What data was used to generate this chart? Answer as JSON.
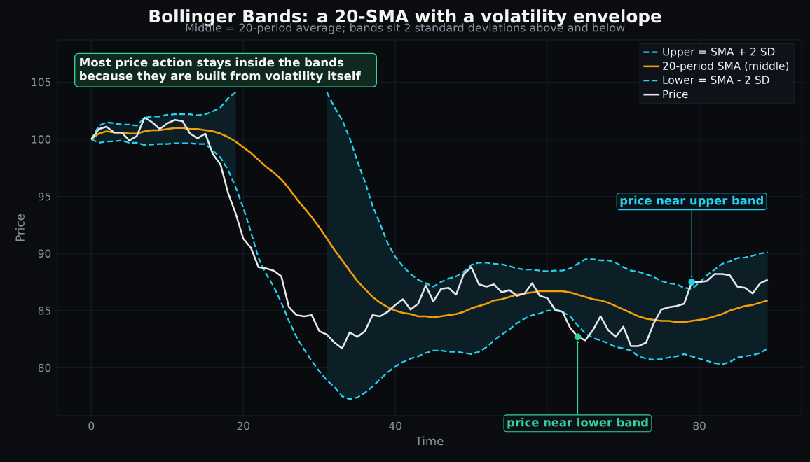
{
  "chart_data": {
    "type": "line",
    "title": "Bollinger Bands: a 20-SMA with a volatility envelope",
    "subtitle": "Middle = 20-period average; bands sit 2 standard deviations above and below",
    "xlabel": "Time",
    "ylabel": "Price",
    "x": [
      0,
      1,
      2,
      3,
      4,
      5,
      6,
      7,
      8,
      9,
      10,
      11,
      12,
      13,
      14,
      15,
      16,
      17,
      18,
      19,
      20,
      21,
      22,
      23,
      24,
      25,
      26,
      27,
      28,
      29,
      30,
      31,
      32,
      33,
      34,
      35,
      36,
      37,
      38,
      39,
      40,
      41,
      42,
      43,
      44,
      45,
      46,
      47,
      48,
      49,
      50,
      51,
      52,
      53,
      54,
      55,
      56,
      57,
      58,
      59,
      60,
      61,
      62,
      63,
      64,
      65,
      66,
      67,
      68,
      69,
      70,
      71,
      72,
      73,
      74,
      75,
      76,
      77,
      78,
      79,
      80,
      81,
      82,
      83,
      84,
      85,
      86,
      87,
      88,
      89
    ],
    "series": [
      {
        "name": "Upper = SMA + 2 SD",
        "color": "#22d3ee",
        "line_style": "dashed",
        "values": [
          100,
          101.2,
          101.5,
          101.4,
          101.3,
          101.3,
          101.2,
          101.9,
          102.0,
          102.0,
          102.15,
          102.2,
          102.2,
          102.2,
          102.1,
          102.2,
          102.45,
          102.8,
          103.6,
          104.1,
          null,
          null,
          null,
          null,
          null,
          null,
          null,
          null,
          null,
          null,
          null,
          104.1,
          102.8,
          101.7,
          100.1,
          98.1,
          96.3,
          94.2,
          92.6,
          90.9,
          89.7,
          88.9,
          88.2,
          87.7,
          87.4,
          87.1,
          87.5,
          87.8,
          88.0,
          88.4,
          89.0,
          89.2,
          89.2,
          89.1,
          89.05,
          88.9,
          88.7,
          88.6,
          88.6,
          88.5,
          88.45,
          88.5,
          88.5,
          88.7,
          89.1,
          89.5,
          89.5,
          89.4,
          89.4,
          89.2,
          88.8,
          88.5,
          88.4,
          88.2,
          87.95,
          87.6,
          87.4,
          87.3,
          87.0,
          86.9,
          87.45,
          88.1,
          88.6,
          89.1,
          89.3,
          89.6,
          89.65,
          89.8,
          90.0,
          90.1
        ]
      },
      {
        "name": "20-period SMA (middle)",
        "color": "#f59e0b",
        "line_style": "solid",
        "values": [
          100,
          100.5,
          100.7,
          100.6,
          100.6,
          100.5,
          100.5,
          100.7,
          100.8,
          100.8,
          100.9,
          101.0,
          101.0,
          100.9,
          100.9,
          100.8,
          100.7,
          100.5,
          100.2,
          99.8,
          99.3,
          98.8,
          98.2,
          97.6,
          97.1,
          96.5,
          95.7,
          94.8,
          94.0,
          93.2,
          92.3,
          91.3,
          90.3,
          89.4,
          88.5,
          87.6,
          86.9,
          86.2,
          85.7,
          85.3,
          85.0,
          84.8,
          84.7,
          84.5,
          84.5,
          84.4,
          84.5,
          84.6,
          84.7,
          84.9,
          85.2,
          85.4,
          85.6,
          85.9,
          86.0,
          86.2,
          86.4,
          86.5,
          86.6,
          86.7,
          86.7,
          86.7,
          86.7,
          86.6,
          86.4,
          86.2,
          86.0,
          85.9,
          85.7,
          85.4,
          85.1,
          84.8,
          84.5,
          84.3,
          84.2,
          84.1,
          84.1,
          84.0,
          84.0,
          84.1,
          84.2,
          84.3,
          84.5,
          84.7,
          85.0,
          85.2,
          85.4,
          85.5,
          85.7,
          85.9
        ],
        "upper": [
          100,
          101.2,
          101.5,
          101.4,
          101.3,
          101.3,
          101.2,
          101.9,
          102.0,
          102.0,
          102.15,
          102.2,
          102.2,
          102.2,
          102.1,
          102.2,
          102.45,
          102.8,
          103.6,
          104.1,
          null,
          null,
          null,
          null,
          null,
          null,
          null,
          null,
          null,
          null,
          null,
          104.1,
          102.8,
          101.7,
          100.1,
          98.1,
          96.3,
          94.2,
          92.6,
          90.9,
          89.7,
          88.9,
          88.2,
          87.7,
          87.4,
          87.1,
          87.5,
          87.8,
          88.0,
          88.4,
          89.0,
          89.2,
          89.2,
          89.1,
          89.05,
          88.9,
          88.7,
          88.6,
          88.6,
          88.5,
          88.45,
          88.5,
          88.5,
          88.7,
          89.1,
          89.5,
          89.5,
          89.4,
          89.4,
          89.2,
          88.8,
          88.5,
          88.4,
          88.2,
          87.95,
          87.6,
          87.4,
          87.3,
          87.0,
          86.9,
          87.45,
          88.1,
          88.6,
          89.1,
          89.3,
          89.6,
          89.65,
          89.8,
          90.0,
          90.1
        ],
        "lower": [
          100,
          99.7,
          99.8,
          99.82,
          99.9,
          99.7,
          99.7,
          99.5,
          99.55,
          99.6,
          99.6,
          99.65,
          99.65,
          99.65,
          99.6,
          99.6,
          99.0,
          98.4,
          97.3,
          95.8,
          null,
          null,
          null,
          null,
          null,
          null,
          null,
          null,
          null,
          null,
          null,
          78.9,
          78.3,
          77.5,
          77.25,
          77.4,
          77.8,
          78.35,
          79.0,
          79.6,
          80.1,
          80.5,
          80.8,
          81.0,
          81.3,
          81.5,
          81.5,
          81.4,
          81.4,
          81.3,
          81.2,
          81.4,
          81.8,
          82.4,
          82.9,
          83.35,
          83.9,
          84.3,
          84.6,
          84.75,
          85.0,
          85.0,
          84.9,
          84.5,
          83.7,
          83.0,
          82.6,
          82.4,
          82.15,
          81.8,
          81.7,
          81.5,
          81.0,
          80.8,
          80.7,
          80.75,
          80.9,
          81.0,
          81.2,
          81.0,
          80.8,
          80.6,
          80.4,
          80.3,
          80.5,
          80.9,
          81.0,
          81.1,
          81.3,
          81.7
        ]
      },
      {
        "name": "Lower = SMA - 2 SD",
        "color": "#22d3ee",
        "line_style": "dashed",
        "values": [
          100,
          99.7,
          99.8,
          99.82,
          99.9,
          99.7,
          99.7,
          99.5,
          99.55,
          99.6,
          99.6,
          99.65,
          99.65,
          99.65,
          99.6,
          99.6,
          99.0,
          98.4,
          97.3,
          95.8,
          94.0,
          91.9,
          89.6,
          88.2,
          87.1,
          85.7,
          84.1,
          82.7,
          81.6,
          80.6,
          79.7,
          78.9,
          78.3,
          77.5,
          77.25,
          77.4,
          77.8,
          78.35,
          79.0,
          79.6,
          80.1,
          80.5,
          80.8,
          81.0,
          81.3,
          81.5,
          81.5,
          81.4,
          81.4,
          81.3,
          81.2,
          81.4,
          81.8,
          82.4,
          82.9,
          83.35,
          83.9,
          84.3,
          84.6,
          84.75,
          85.0,
          85.0,
          84.9,
          84.5,
          83.7,
          83.0,
          82.6,
          82.4,
          82.15,
          81.8,
          81.7,
          81.5,
          81.0,
          80.8,
          80.7,
          80.75,
          80.9,
          81.0,
          81.2,
          81.0,
          80.8,
          80.6,
          80.4,
          80.3,
          80.5,
          80.9,
          81.0,
          81.1,
          81.3,
          81.7
        ]
      },
      {
        "name": "Price",
        "color": "#e5e7eb",
        "line_style": "solid",
        "values": [
          100,
          100.9,
          101.1,
          100.6,
          100.6,
          99.9,
          100.3,
          101.9,
          101.5,
          100.9,
          101.4,
          101.7,
          101.6,
          100.5,
          100.1,
          100.5,
          98.7,
          97.8,
          95.3,
          93.5,
          91.3,
          90.5,
          88.8,
          88.7,
          88.5,
          88.0,
          85.3,
          84.6,
          84.5,
          84.6,
          83.2,
          82.9,
          82.2,
          81.7,
          83.1,
          82.7,
          83.2,
          84.6,
          84.5,
          84.9,
          85.5,
          86.0,
          85.1,
          85.6,
          87.2,
          85.8,
          86.9,
          87.0,
          86.4,
          88.2,
          88.8,
          87.3,
          87.1,
          87.3,
          86.6,
          86.8,
          86.3,
          86.5,
          87.4,
          86.3,
          86.1,
          85.1,
          84.9,
          83.5,
          82.7,
          82.4,
          83.3,
          84.5,
          83.3,
          82.7,
          83.6,
          81.9,
          81.9,
          82.2,
          83.9,
          85.1,
          85.3,
          85.4,
          85.6,
          87.5,
          87.5,
          87.6,
          88.2,
          88.2,
          88.1,
          87.1,
          87.0,
          86.5,
          87.4,
          87.7
        ]
      }
    ],
    "xlim": [
      -4.45,
      93.45
    ],
    "ylim": [
      75.8,
      108.7
    ],
    "xticks": [
      0,
      20,
      40,
      {
        "value": 60,
        "label": null
      },
      80
    ],
    "yticks": [
      80,
      85,
      90,
      95,
      100,
      105
    ],
    "grid": true,
    "legend": "top right",
    "annotations": [
      "Most price action stays inside the bands because they are built from volatility itself",
      {
        "text": "price near upper band",
        "x": 79,
        "y": 87.5
      },
      {
        "text": "price near lower band",
        "x": 64,
        "y": 82.7
      }
    ]
  }
}
